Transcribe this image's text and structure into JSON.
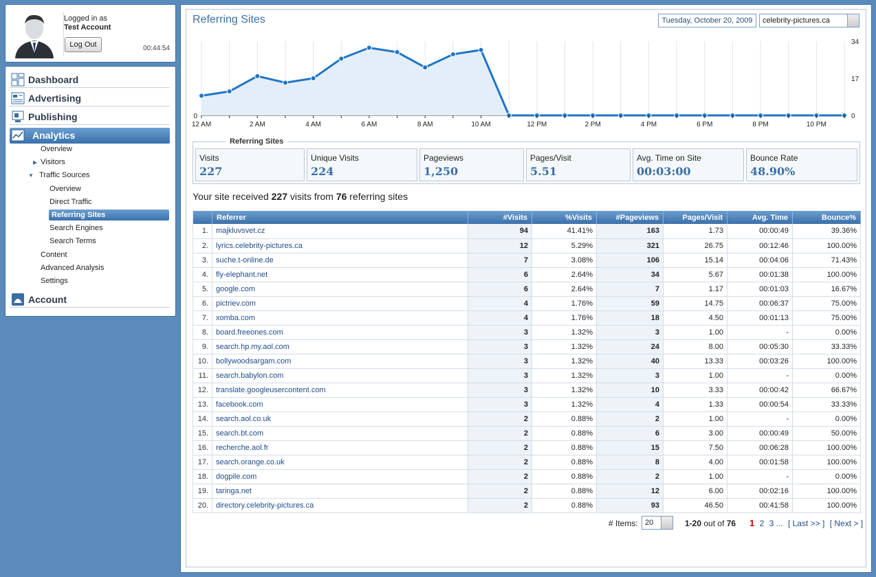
{
  "user": {
    "logged_label": "Logged in as",
    "account_name": "Test Account",
    "logout_label": "Log Out",
    "session_time": "00:44:54"
  },
  "nav": {
    "main": [
      {
        "label": "Dashboard",
        "icon": "dashboard-icon"
      },
      {
        "label": "Advertising",
        "icon": "advertising-icon"
      },
      {
        "label": "Publishing",
        "icon": "publishing-icon"
      },
      {
        "label": "Analytics",
        "icon": "analytics-icon"
      },
      {
        "label": "Account",
        "icon": "account-icon"
      }
    ],
    "analytics_sub": {
      "overview": "Overview",
      "visitors": "Visitors",
      "traffic_sources": "Traffic Sources",
      "ts_overview": "Overview",
      "direct_traffic": "Direct Traffic",
      "referring_sites": "Referring Sites",
      "search_engines": "Search Engines",
      "search_terms": "Search Terms",
      "content": "Content",
      "advanced_analysis": "Advanced Analysis",
      "settings": "Settings"
    }
  },
  "header": {
    "title": "Referring Sites",
    "date": "Tuesday, October 20, 2009",
    "site": "celebrity-pictures.ca"
  },
  "chart_data": {
    "type": "area",
    "x": [
      "12 AM",
      "1 AM",
      "2 AM",
      "3 AM",
      "4 AM",
      "5 AM",
      "6 AM",
      "7 AM",
      "8 AM",
      "9 AM",
      "10 AM",
      "11 AM",
      "12 PM",
      "1 PM",
      "2 PM",
      "3 PM",
      "4 PM",
      "5 PM",
      "6 PM",
      "7 PM",
      "8 PM",
      "9 PM",
      "10 PM",
      "11 PM"
    ],
    "x_tick_labels": [
      "12 AM",
      "2 AM",
      "4 AM",
      "6 AM",
      "8 AM",
      "10 AM",
      "12 PM",
      "2 PM",
      "4 PM",
      "6 PM",
      "8 PM",
      "10 PM"
    ],
    "values": [
      9,
      11,
      18,
      15,
      17,
      26,
      31,
      29,
      22,
      28,
      30,
      0,
      0,
      0,
      0,
      0,
      0,
      0,
      0,
      0,
      0,
      0,
      0,
      0
    ],
    "y_ticks": [
      0,
      17,
      34
    ],
    "ylim": [
      0,
      34
    ],
    "grid": "vertical",
    "line_color": "#1f74c4",
    "fill_color": "#e3eef8"
  },
  "stats": {
    "legend": "Referring Sites",
    "items": [
      {
        "label": "Visits",
        "value": "227"
      },
      {
        "label": "Unique Visits",
        "value": "224"
      },
      {
        "label": "Pageviews",
        "value": "1,250"
      },
      {
        "label": "Pages/Visit",
        "value": "5.51"
      },
      {
        "label": "Avg. Time on Site",
        "value": "00:03:00"
      },
      {
        "label": "Bounce Rate",
        "value": "48.90%"
      }
    ]
  },
  "summary": {
    "prefix": "Your site received",
    "visits": "227",
    "middle": "visits from",
    "sites": "76",
    "suffix": "referring sites"
  },
  "table": {
    "headers": [
      "Referrer",
      "#Visits",
      "%Visits",
      "#Pageviews",
      "Pages/Visit",
      "Avg. Time",
      "Bounce%"
    ],
    "rows": [
      [
        "1.",
        "majkluvsvet.cz",
        "94",
        "41.41%",
        "163",
        "1.73",
        "00:00:49",
        "39.36%"
      ],
      [
        "2.",
        "lyrics.celebrity-pictures.ca",
        "12",
        "5.29%",
        "321",
        "26.75",
        "00:12:46",
        "100.00%"
      ],
      [
        "3.",
        "suche.t-online.de",
        "7",
        "3.08%",
        "106",
        "15.14",
        "00:04:06",
        "71.43%"
      ],
      [
        "4.",
        "fly-elephant.net",
        "6",
        "2.64%",
        "34",
        "5.67",
        "00:01:38",
        "100.00%"
      ],
      [
        "5.",
        "google.com",
        "6",
        "2.64%",
        "7",
        "1.17",
        "00:01:03",
        "16.67%"
      ],
      [
        "6.",
        "pictriev.com",
        "4",
        "1.76%",
        "59",
        "14.75",
        "00:06:37",
        "75.00%"
      ],
      [
        "7.",
        "xomba.com",
        "4",
        "1.76%",
        "18",
        "4.50",
        "00:01:13",
        "75.00%"
      ],
      [
        "8.",
        "board.freeones.com",
        "3",
        "1.32%",
        "3",
        "1.00",
        "-",
        "0.00%"
      ],
      [
        "9.",
        "search.hp.my.aol.com",
        "3",
        "1.32%",
        "24",
        "8.00",
        "00:05:30",
        "33.33%"
      ],
      [
        "10.",
        "bollywoodsargam.com",
        "3",
        "1.32%",
        "40",
        "13.33",
        "00:03:26",
        "100.00%"
      ],
      [
        "11.",
        "search.babylon.com",
        "3",
        "1.32%",
        "3",
        "1.00",
        "-",
        "0.00%"
      ],
      [
        "12.",
        "translate.googleusercontent.com",
        "3",
        "1.32%",
        "10",
        "3.33",
        "00:00:42",
        "66.67%"
      ],
      [
        "13.",
        "facebook.com",
        "3",
        "1.32%",
        "4",
        "1.33",
        "00:00:54",
        "33.33%"
      ],
      [
        "14.",
        "search.aol.co.uk",
        "2",
        "0.88%",
        "2",
        "1.00",
        "-",
        "0.00%"
      ],
      [
        "15.",
        "search.bt.com",
        "2",
        "0.88%",
        "6",
        "3.00",
        "00:00:49",
        "50.00%"
      ],
      [
        "16.",
        "recherche.aol.fr",
        "2",
        "0.88%",
        "15",
        "7.50",
        "00:06:28",
        "100.00%"
      ],
      [
        "17.",
        "search.orange.co.uk",
        "2",
        "0.88%",
        "8",
        "4.00",
        "00:01:58",
        "100.00%"
      ],
      [
        "18.",
        "dogpile.com",
        "2",
        "0.88%",
        "2",
        "1.00",
        "-",
        "0.00%"
      ],
      [
        "19.",
        "taringa.net",
        "2",
        "0.88%",
        "12",
        "6.00",
        "00:02:16",
        "100.00%"
      ],
      [
        "20.",
        "directory.celebrity-pictures.ca",
        "2",
        "0.88%",
        "93",
        "46.50",
        "00:41:58",
        "100.00%"
      ]
    ]
  },
  "pager": {
    "items_label": "# Items:",
    "items_value": "20",
    "range": "1-20",
    "out_of": "out of",
    "total": "76",
    "pages": [
      "1",
      "2",
      "3 ..."
    ],
    "last": "[ Last >> ]",
    "next": "[ Next > ]"
  }
}
